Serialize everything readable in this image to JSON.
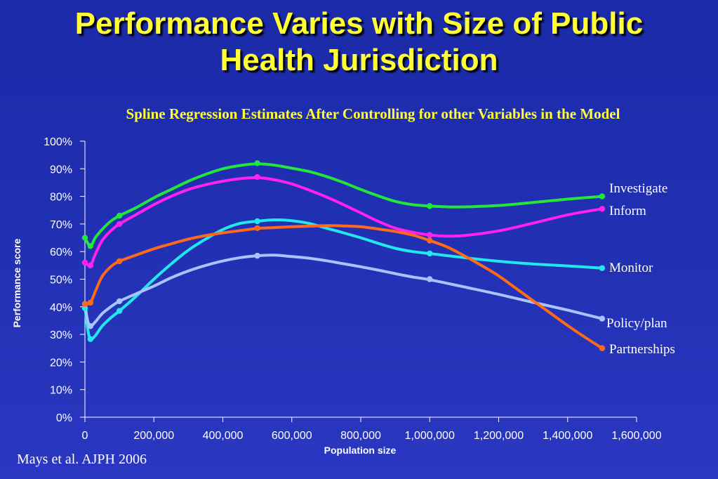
{
  "slide": {
    "title_line1": "Performance Varies with Size of Public",
    "title_line2": "Health Jurisdiction",
    "subtitle": "Spline Regression Estimates After Controlling for other Variables in the Model",
    "citation": "Mays et al.  AJPH 2006"
  },
  "chart_data": {
    "type": "line",
    "xlabel": "Population size",
    "ylabel": "Performance score",
    "xlim": [
      0,
      1600000
    ],
    "ylim": [
      0,
      100
    ],
    "x_ticks": [
      "0",
      "200,000",
      "400,000",
      "600,000",
      "800,000",
      "1,000,000",
      "1,200,000",
      "1,400,000",
      "1,600,000"
    ],
    "y_ticks": [
      "0%",
      "10%",
      "20%",
      "30%",
      "40%",
      "50%",
      "60%",
      "70%",
      "80%",
      "90%",
      "100%"
    ],
    "grid": false,
    "series": [
      {
        "name": "Investigate",
        "color": "#22e63a",
        "points": [
          [
            0,
            65
          ],
          [
            16000,
            62
          ],
          [
            30000,
            65
          ],
          [
            50000,
            68
          ],
          [
            75000,
            71
          ],
          [
            100000,
            73
          ],
          [
            150000,
            76
          ],
          [
            200000,
            79.5
          ],
          [
            250000,
            82.5
          ],
          [
            300000,
            85.5
          ],
          [
            350000,
            88
          ],
          [
            400000,
            90
          ],
          [
            450000,
            91.2
          ],
          [
            500000,
            91.8
          ],
          [
            550000,
            91.3
          ],
          [
            600000,
            90.2
          ],
          [
            650000,
            89
          ],
          [
            700000,
            87.2
          ],
          [
            750000,
            85
          ],
          [
            800000,
            82.5
          ],
          [
            850000,
            80.2
          ],
          [
            900000,
            78.2
          ],
          [
            950000,
            77
          ],
          [
            1000000,
            76.5
          ],
          [
            1050000,
            76.2
          ],
          [
            1100000,
            76.2
          ],
          [
            1200000,
            76.7
          ],
          [
            1300000,
            77.8
          ],
          [
            1400000,
            79
          ],
          [
            1500000,
            80
          ]
        ],
        "markers": [
          [
            0,
            65
          ],
          [
            16000,
            62
          ],
          [
            100000,
            73
          ],
          [
            500000,
            92
          ],
          [
            1000000,
            76.5
          ],
          [
            1500000,
            80
          ]
        ]
      },
      {
        "name": "Inform",
        "color": "#ff22ee",
        "points": [
          [
            0,
            56
          ],
          [
            16000,
            55
          ],
          [
            30000,
            59
          ],
          [
            50000,
            64
          ],
          [
            75000,
            67.5
          ],
          [
            100000,
            70
          ],
          [
            150000,
            73.5
          ],
          [
            200000,
            77
          ],
          [
            250000,
            80
          ],
          [
            300000,
            82.5
          ],
          [
            350000,
            84.2
          ],
          [
            400000,
            85.5
          ],
          [
            450000,
            86.4
          ],
          [
            500000,
            86.8
          ],
          [
            550000,
            86
          ],
          [
            600000,
            84.5
          ],
          [
            650000,
            82.3
          ],
          [
            700000,
            79.8
          ],
          [
            750000,
            77
          ],
          [
            800000,
            74
          ],
          [
            850000,
            71
          ],
          [
            900000,
            68.5
          ],
          [
            950000,
            67
          ],
          [
            1000000,
            66
          ],
          [
            1050000,
            65.6
          ],
          [
            1100000,
            65.8
          ],
          [
            1200000,
            67.5
          ],
          [
            1300000,
            70.3
          ],
          [
            1400000,
            73.3
          ],
          [
            1500000,
            75.5
          ]
        ],
        "markers": [
          [
            0,
            56
          ],
          [
            16000,
            55
          ],
          [
            100000,
            70
          ],
          [
            500000,
            87
          ],
          [
            1000000,
            66
          ],
          [
            1500000,
            75.5
          ]
        ]
      },
      {
        "name": "Monitor",
        "color": "#22e8ee",
        "points": [
          [
            0,
            40
          ],
          [
            8000,
            32
          ],
          [
            16000,
            28.3
          ],
          [
            30000,
            29.5
          ],
          [
            50000,
            33
          ],
          [
            75000,
            36
          ],
          [
            100000,
            38.5
          ],
          [
            150000,
            44
          ],
          [
            200000,
            50
          ],
          [
            250000,
            55.5
          ],
          [
            300000,
            60.5
          ],
          [
            350000,
            64.5
          ],
          [
            400000,
            68
          ],
          [
            450000,
            70.2
          ],
          [
            500000,
            71
          ],
          [
            550000,
            71.5
          ],
          [
            600000,
            71.2
          ],
          [
            650000,
            70.2
          ],
          [
            700000,
            68.5
          ],
          [
            750000,
            66.8
          ],
          [
            800000,
            65
          ],
          [
            850000,
            63
          ],
          [
            900000,
            61.2
          ],
          [
            950000,
            60
          ],
          [
            1000000,
            59.3
          ],
          [
            1100000,
            57.8
          ],
          [
            1200000,
            56.5
          ],
          [
            1300000,
            55.5
          ],
          [
            1400000,
            54.8
          ],
          [
            1500000,
            54
          ]
        ],
        "markers": [
          [
            0,
            39.5
          ],
          [
            16000,
            28.3
          ],
          [
            100000,
            38.5
          ],
          [
            500000,
            71
          ],
          [
            1000000,
            59.3
          ],
          [
            1500000,
            54
          ]
        ]
      },
      {
        "name": "Policy/plan",
        "color": "#a8c4ff",
        "points": [
          [
            0,
            41
          ],
          [
            8000,
            35
          ],
          [
            16000,
            33
          ],
          [
            30000,
            34.5
          ],
          [
            50000,
            37.5
          ],
          [
            75000,
            40
          ],
          [
            100000,
            42
          ],
          [
            150000,
            44.8
          ],
          [
            200000,
            47.5
          ],
          [
            250000,
            50.5
          ],
          [
            300000,
            53
          ],
          [
            350000,
            55
          ],
          [
            400000,
            56.6
          ],
          [
            450000,
            57.8
          ],
          [
            500000,
            58.5
          ],
          [
            550000,
            58.7
          ],
          [
            600000,
            58.2
          ],
          [
            650000,
            57.6
          ],
          [
            700000,
            56.7
          ],
          [
            750000,
            55.6
          ],
          [
            800000,
            54.5
          ],
          [
            850000,
            53.3
          ],
          [
            900000,
            52
          ],
          [
            950000,
            50.8
          ],
          [
            1000000,
            49.8
          ],
          [
            1100000,
            47.2
          ],
          [
            1200000,
            44.5
          ],
          [
            1300000,
            41.6
          ],
          [
            1400000,
            38.8
          ],
          [
            1500000,
            35.7
          ]
        ],
        "markers": [
          [
            0,
            41
          ],
          [
            16000,
            33
          ],
          [
            100000,
            42
          ],
          [
            500000,
            58.5
          ],
          [
            1000000,
            50
          ],
          [
            1500000,
            35.7
          ]
        ]
      },
      {
        "name": "Partnerships",
        "color": "#ff6a1a",
        "points": [
          [
            0,
            41
          ],
          [
            16000,
            41.5
          ],
          [
            30000,
            45.5
          ],
          [
            50000,
            51
          ],
          [
            75000,
            54.5
          ],
          [
            100000,
            56.5
          ],
          [
            150000,
            58.8
          ],
          [
            200000,
            61
          ],
          [
            250000,
            62.8
          ],
          [
            300000,
            64.5
          ],
          [
            350000,
            65.8
          ],
          [
            400000,
            66.8
          ],
          [
            450000,
            67.6
          ],
          [
            500000,
            68.4
          ],
          [
            550000,
            68.7
          ],
          [
            600000,
            69
          ],
          [
            650000,
            69.2
          ],
          [
            700000,
            69.4
          ],
          [
            750000,
            69.3
          ],
          [
            800000,
            69
          ],
          [
            850000,
            68.2
          ],
          [
            900000,
            67.3
          ],
          [
            950000,
            66
          ],
          [
            1000000,
            64
          ],
          [
            1050000,
            61.7
          ],
          [
            1100000,
            58.5
          ],
          [
            1150000,
            55
          ],
          [
            1200000,
            51.2
          ],
          [
            1250000,
            46.7
          ],
          [
            1300000,
            42.2
          ],
          [
            1350000,
            37.7
          ],
          [
            1400000,
            33.2
          ],
          [
            1450000,
            29
          ],
          [
            1500000,
            25
          ]
        ],
        "markers": [
          [
            0,
            41
          ],
          [
            16000,
            41.5
          ],
          [
            100000,
            56.5
          ],
          [
            500000,
            68.5
          ],
          [
            1000000,
            64
          ],
          [
            1500000,
            25
          ]
        ]
      }
    ]
  }
}
